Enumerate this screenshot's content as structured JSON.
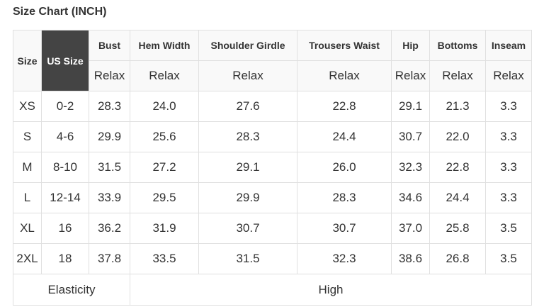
{
  "title": "Size Chart (INCH)",
  "header": {
    "size": "Size",
    "us_size": "US Size",
    "columns": [
      "Bust",
      "Hem Width",
      "Shoulder Girdle",
      "Trousers Waist",
      "Hip",
      "Bottoms",
      "Inseam"
    ],
    "subheader": [
      "Relax",
      "Relax",
      "Relax",
      "Relax",
      "Relax",
      "Relax",
      "Relax"
    ]
  },
  "rows": [
    {
      "size": "XS",
      "us": "0-2",
      "values": [
        "28.3",
        "24.0",
        "27.6",
        "22.8",
        "29.1",
        "21.3",
        "3.3"
      ]
    },
    {
      "size": "S",
      "us": "4-6",
      "values": [
        "29.9",
        "25.6",
        "28.3",
        "24.4",
        "30.7",
        "22.0",
        "3.3"
      ]
    },
    {
      "size": "M",
      "us": "8-10",
      "values": [
        "31.5",
        "27.2",
        "29.1",
        "26.0",
        "32.3",
        "22.8",
        "3.3"
      ]
    },
    {
      "size": "L",
      "us": "12-14",
      "values": [
        "33.9",
        "29.5",
        "29.9",
        "28.3",
        "34.6",
        "24.4",
        "3.3"
      ]
    },
    {
      "size": "XL",
      "us": "16",
      "values": [
        "36.2",
        "31.9",
        "30.7",
        "30.7",
        "37.0",
        "25.8",
        "3.5"
      ]
    },
    {
      "size": "2XL",
      "us": "18",
      "values": [
        "37.8",
        "33.5",
        "31.5",
        "32.3",
        "38.6",
        "26.8",
        "3.5"
      ]
    }
  ],
  "footer": {
    "label": "Elasticity",
    "value": "High"
  },
  "colors": {
    "us_size_bg": "#444444",
    "header_bg": "#f9f9f9",
    "border": "#e0e0e0"
  }
}
